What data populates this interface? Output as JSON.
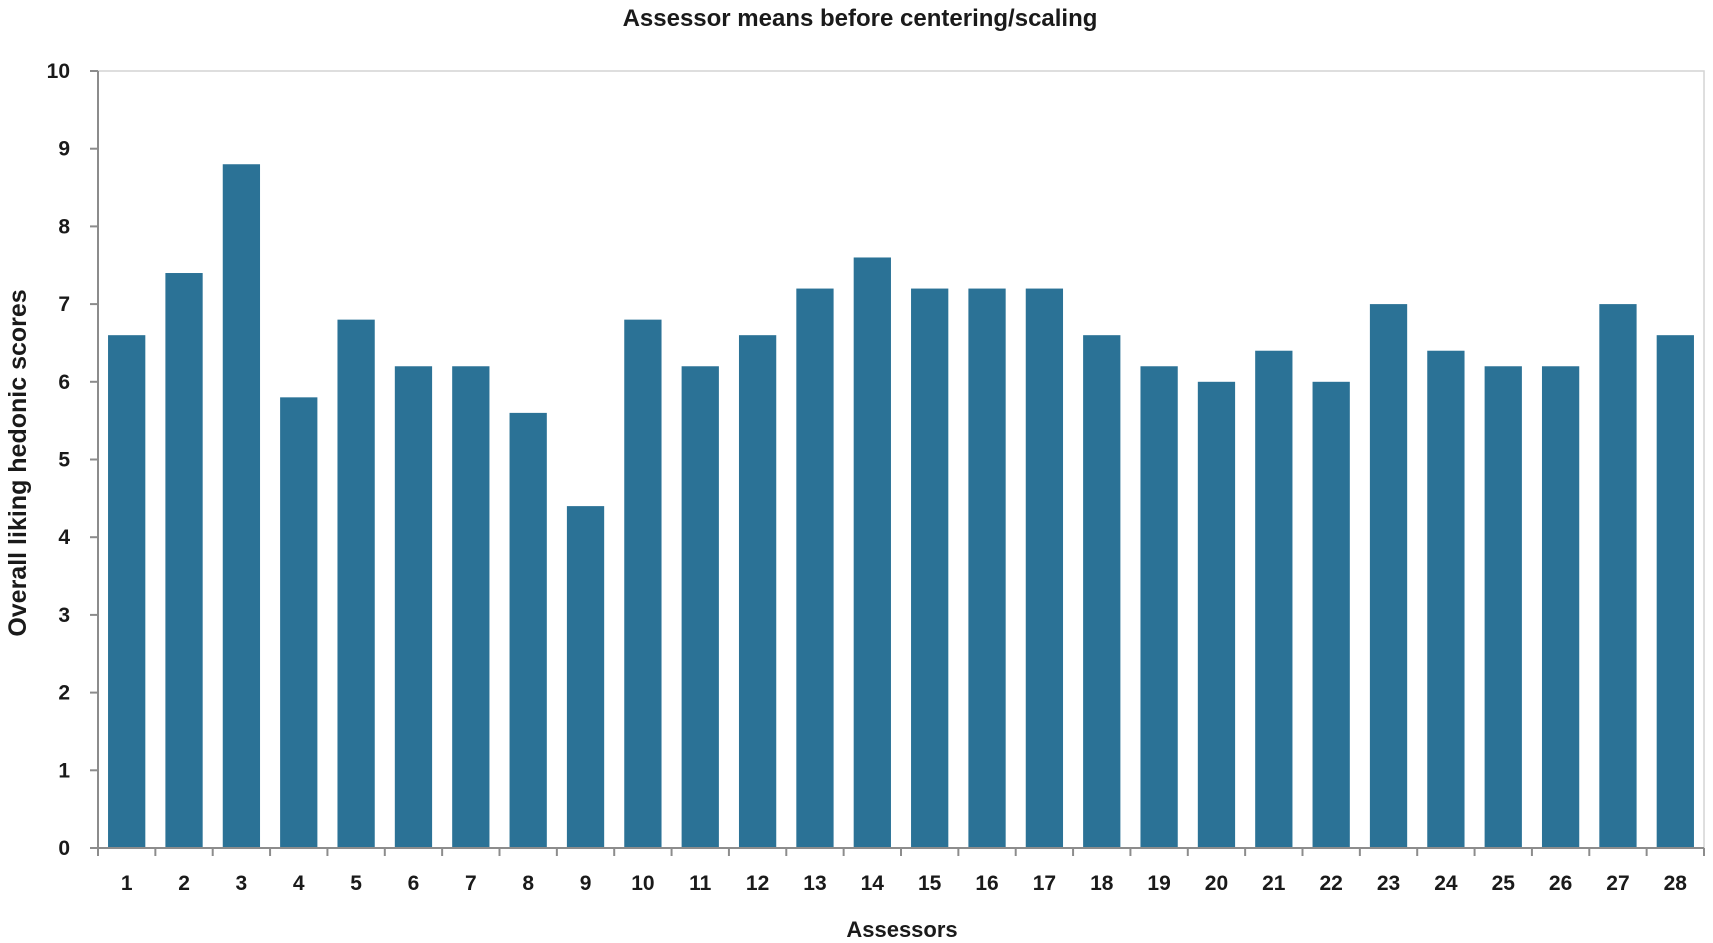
{
  "chart_data": {
    "type": "bar",
    "title": "Assessor means before centering/scaling",
    "xlabel": "Assessors",
    "ylabel": "Overall liking hedonic scores",
    "ylim": [
      0,
      10
    ],
    "yticks": [
      0,
      1,
      2,
      3,
      4,
      5,
      6,
      7,
      8,
      9,
      10
    ],
    "grid": false,
    "bar_color": "#2b7296",
    "categories": [
      "1",
      "2",
      "3",
      "4",
      "5",
      "6",
      "7",
      "8",
      "9",
      "10",
      "11",
      "12",
      "13",
      "14",
      "15",
      "16",
      "17",
      "18",
      "19",
      "20",
      "21",
      "22",
      "23",
      "24",
      "25",
      "26",
      "27",
      "28"
    ],
    "values": [
      6.6,
      7.4,
      8.8,
      5.8,
      6.8,
      6.2,
      6.2,
      5.6,
      4.4,
      6.8,
      6.2,
      6.6,
      7.2,
      7.6,
      7.2,
      7.2,
      7.2,
      6.6,
      6.2,
      6.0,
      6.4,
      6.0,
      7.0,
      6.4,
      6.2,
      6.2,
      7.0,
      6.6
    ]
  }
}
